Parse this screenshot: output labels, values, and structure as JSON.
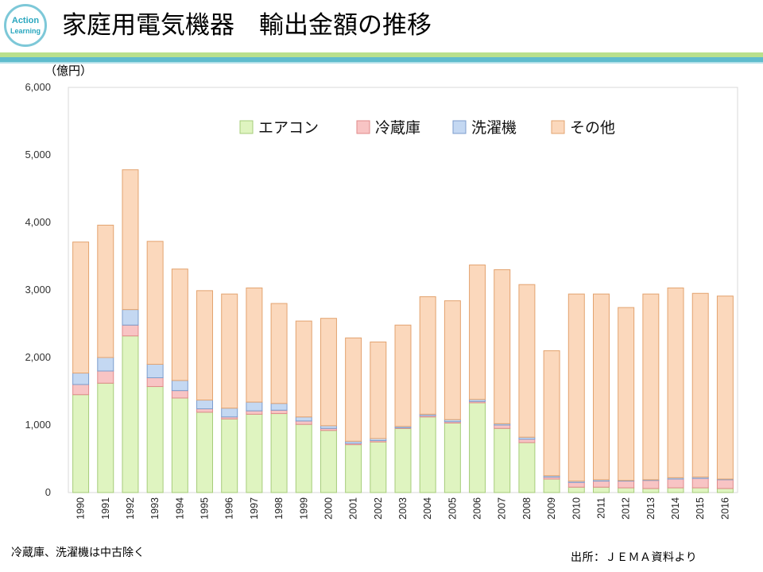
{
  "logo": {
    "line1": "Action",
    "line2": "Learning"
  },
  "title": "家庭用電気機器　輸出金額の推移",
  "unit_label": "（億円）",
  "footnote": "冷蔵庫、洗濯機は中古除く",
  "source": "出所：ＪＥＭＡ資料より",
  "colors": {
    "accent_green": "#b9e08c",
    "accent_teal": "#5fbccd",
    "aircon": "#dff4c0",
    "fridge": "#f8c4c4",
    "washer": "#c4d8f2",
    "other": "#fbd8bc"
  },
  "chart_data": {
    "type": "bar",
    "stacked": true,
    "ylabel": "（億円）",
    "ylim": [
      0,
      6000
    ],
    "yticks": [
      "0",
      "1,000",
      "2,000",
      "3,000",
      "4,000",
      "5,000",
      "6,000"
    ],
    "grid": false,
    "legend_position": "top",
    "categories": [
      "1990",
      "1991",
      "1992",
      "1993",
      "1994",
      "1995",
      "1996",
      "1997",
      "1998",
      "1999",
      "2000",
      "2001",
      "2002",
      "2003",
      "2004",
      "2005",
      "2006",
      "2007",
      "2008",
      "2009",
      "2010",
      "2011",
      "2012",
      "2013",
      "2014",
      "2015",
      "2016"
    ],
    "series": [
      {
        "name": "エアコン",
        "color": "#dff4c0",
        "edge": "#a6cc7a",
        "values": [
          1450,
          1620,
          2320,
          1570,
          1400,
          1190,
          1090,
          1160,
          1170,
          1010,
          920,
          710,
          750,
          950,
          1120,
          1030,
          1330,
          950,
          740,
          200,
          80,
          80,
          70,
          60,
          70,
          70,
          60
        ]
      },
      {
        "name": "冷蔵庫",
        "color": "#f8c4c4",
        "edge": "#e08a8a",
        "values": [
          150,
          180,
          160,
          130,
          110,
          50,
          30,
          50,
          50,
          50,
          30,
          20,
          20,
          10,
          20,
          20,
          20,
          50,
          50,
          30,
          70,
          90,
          100,
          120,
          130,
          140,
          130
        ]
      },
      {
        "name": "洗濯機",
        "color": "#c4d8f2",
        "edge": "#7c9ccc",
        "values": [
          170,
          200,
          230,
          200,
          150,
          130,
          130,
          130,
          100,
          60,
          40,
          30,
          30,
          20,
          20,
          30,
          30,
          20,
          30,
          20,
          20,
          20,
          10,
          10,
          20,
          20,
          10
        ]
      },
      {
        "name": "その他",
        "color": "#fbd8bc",
        "edge": "#e3a36f",
        "values": [
          1940,
          1960,
          2070,
          1820,
          1650,
          1620,
          1690,
          1690,
          1480,
          1420,
          1590,
          1530,
          1430,
          1500,
          1740,
          1760,
          1990,
          2280,
          2260,
          1850,
          2770,
          2750,
          2560,
          2750,
          2810,
          2720,
          2710
        ]
      }
    ]
  }
}
